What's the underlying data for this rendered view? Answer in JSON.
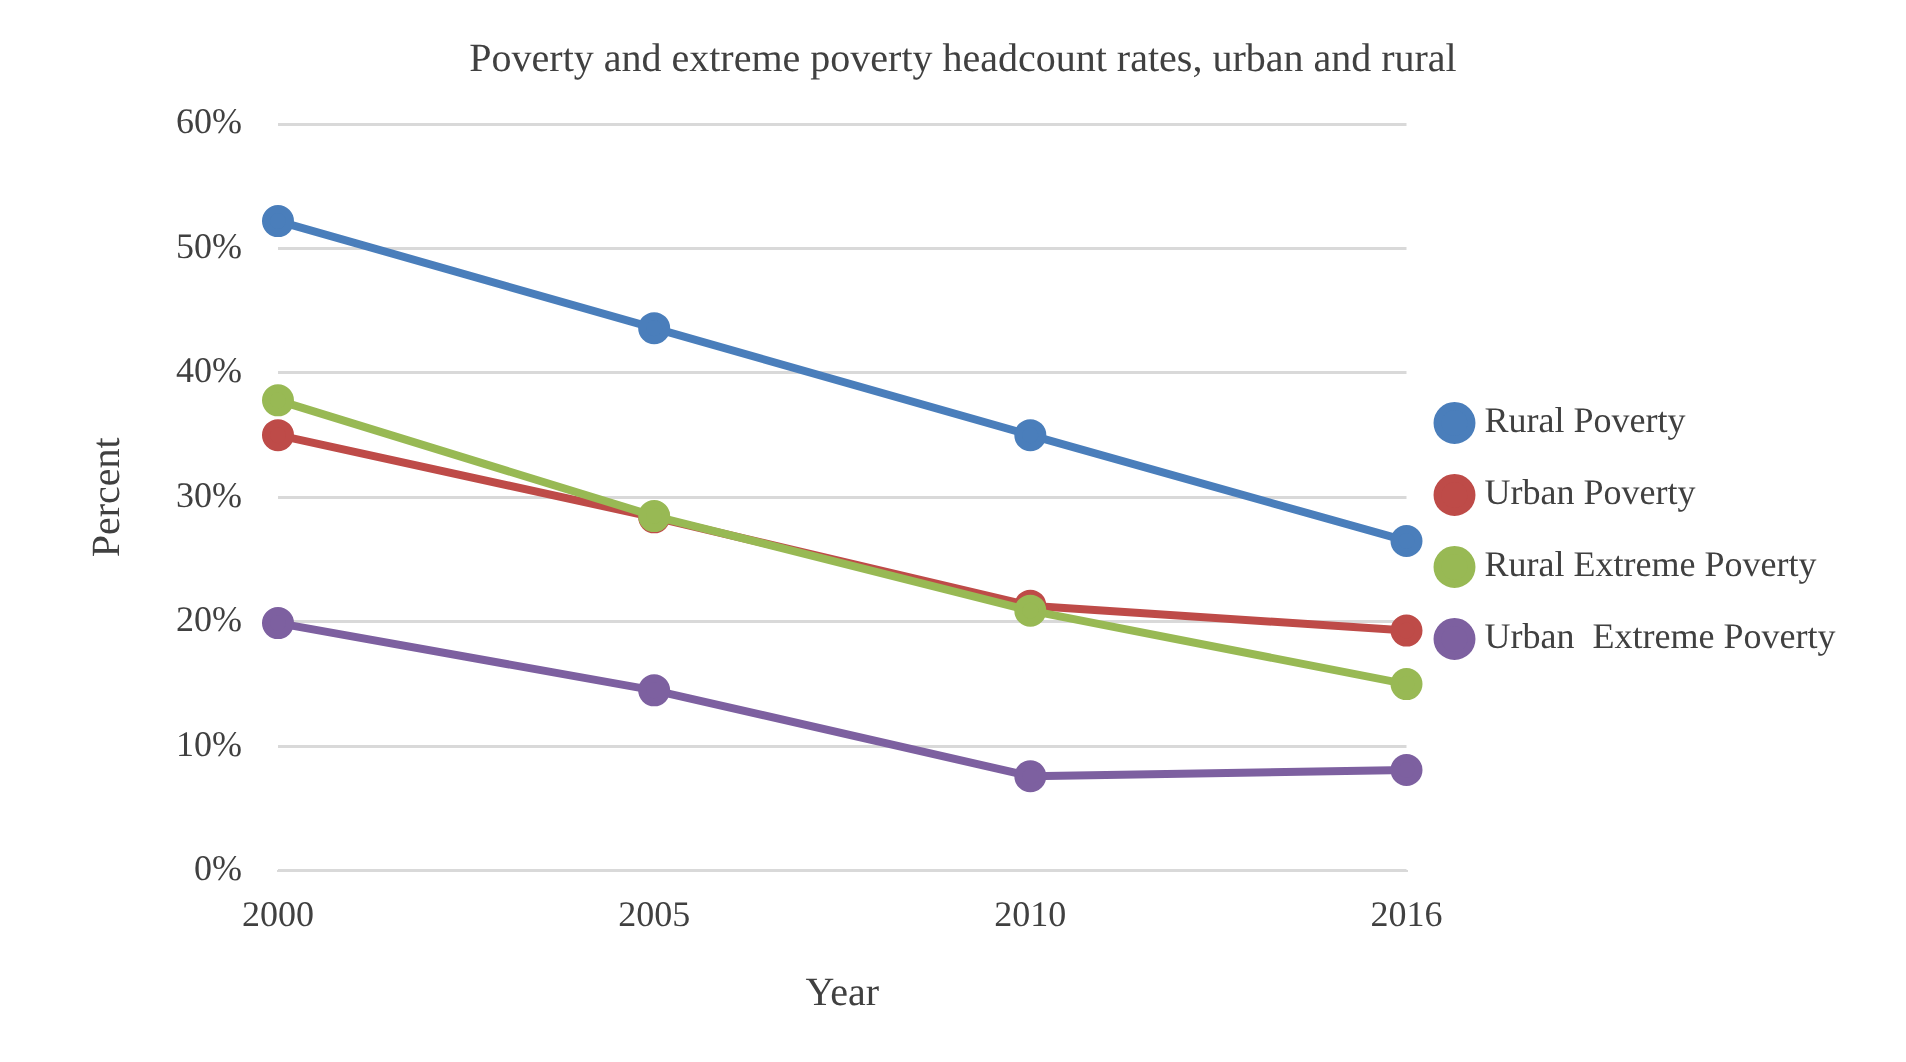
{
  "chart_data": {
    "type": "line",
    "title": "Poverty and extreme poverty headcount rates, urban and rural",
    "xlabel": "Year",
    "ylabel": "Percent",
    "categories": [
      "2000",
      "2005",
      "2010",
      "2016"
    ],
    "series": [
      {
        "name": "Rural Poverty",
        "color": "#4a7ebb",
        "values": [
          52.2,
          43.6,
          35.0,
          26.5
        ]
      },
      {
        "name": "Urban Poverty",
        "color": "#be4b48",
        "values": [
          35.0,
          28.4,
          21.3,
          19.3
        ]
      },
      {
        "name": "Rural Extreme Poverty",
        "color": "#98b954",
        "values": [
          37.8,
          28.5,
          20.9,
          15.0
        ]
      },
      {
        "name": "Urban  Extreme Poverty",
        "color": "#7d60a0",
        "values": [
          19.9,
          14.5,
          7.6,
          8.1
        ]
      }
    ],
    "ylim": [
      0,
      60
    ],
    "yticks": [
      {
        "value": 0,
        "label": "0%"
      },
      {
        "value": 10,
        "label": "10%"
      },
      {
        "value": 20,
        "label": "20%"
      },
      {
        "value": 30,
        "label": "30%"
      },
      {
        "value": 40,
        "label": "40%"
      },
      {
        "value": 50,
        "label": "50%"
      },
      {
        "value": 60,
        "label": "60%"
      }
    ],
    "grid": "y",
    "legend": "right",
    "marker": "circle",
    "line_style": "solid"
  }
}
